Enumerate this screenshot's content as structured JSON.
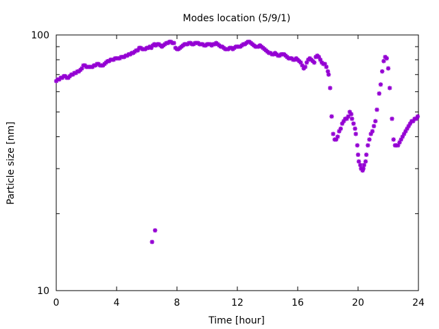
{
  "chart_data": {
    "type": "scatter",
    "title": "Modes location (5/9/1)",
    "xlabel": "Time [hour]",
    "ylabel": "Particle size [nm]",
    "xlim": [
      0,
      24
    ],
    "ylim": [
      10,
      100
    ],
    "yscale": "log",
    "xticks": [
      0,
      4,
      8,
      12,
      16,
      20,
      24
    ],
    "xtick_labels": [
      "0",
      "4",
      "8",
      "12",
      "16",
      "20",
      "24"
    ],
    "yticks": [
      10,
      100
    ],
    "ytick_labels": [
      "10",
      "100"
    ],
    "ytick_minor": [
      20,
      30,
      40,
      50,
      60,
      70,
      80,
      90
    ],
    "grid": false,
    "marker_color": "#9400D3",
    "marker": "star",
    "series": [
      {
        "points": [
          [
            0.0,
            66
          ],
          [
            0.1,
            67
          ],
          [
            0.2,
            67
          ],
          [
            0.3,
            68
          ],
          [
            0.4,
            68
          ],
          [
            0.5,
            69
          ],
          [
            0.6,
            69
          ],
          [
            0.7,
            68
          ],
          [
            0.8,
            68
          ],
          [
            0.9,
            69
          ],
          [
            1.0,
            70
          ],
          [
            1.1,
            70
          ],
          [
            1.2,
            71
          ],
          [
            1.3,
            71
          ],
          [
            1.4,
            72
          ],
          [
            1.5,
            72
          ],
          [
            1.6,
            73
          ],
          [
            1.7,
            74
          ],
          [
            1.8,
            76
          ],
          [
            1.9,
            76
          ],
          [
            2.0,
            75
          ],
          [
            2.1,
            75
          ],
          [
            2.2,
            75
          ],
          [
            2.3,
            75
          ],
          [
            2.4,
            75
          ],
          [
            2.5,
            76
          ],
          [
            2.6,
            76
          ],
          [
            2.7,
            77
          ],
          [
            2.8,
            77
          ],
          [
            2.9,
            76
          ],
          [
            3.0,
            76
          ],
          [
            3.1,
            76
          ],
          [
            3.2,
            77
          ],
          [
            3.3,
            78
          ],
          [
            3.4,
            79
          ],
          [
            3.5,
            79
          ],
          [
            3.6,
            80
          ],
          [
            3.7,
            80
          ],
          [
            3.8,
            80
          ],
          [
            3.9,
            81
          ],
          [
            4.0,
            81
          ],
          [
            4.1,
            81
          ],
          [
            4.2,
            81
          ],
          [
            4.3,
            82
          ],
          [
            4.4,
            82
          ],
          [
            4.5,
            82
          ],
          [
            4.6,
            83
          ],
          [
            4.7,
            83
          ],
          [
            4.8,
            84
          ],
          [
            4.9,
            84
          ],
          [
            5.0,
            85
          ],
          [
            5.1,
            85
          ],
          [
            5.2,
            86
          ],
          [
            5.3,
            87
          ],
          [
            5.4,
            87
          ],
          [
            5.5,
            89
          ],
          [
            5.6,
            89
          ],
          [
            5.7,
            88
          ],
          [
            5.8,
            88
          ],
          [
            5.9,
            88
          ],
          [
            6.0,
            89
          ],
          [
            6.1,
            89
          ],
          [
            6.2,
            90
          ],
          [
            6.3,
            89
          ],
          [
            6.4,
            91
          ],
          [
            6.5,
            92
          ],
          [
            6.6,
            91
          ],
          [
            6.7,
            92
          ],
          [
            6.8,
            92
          ],
          [
            6.9,
            91
          ],
          [
            7.0,
            90
          ],
          [
            7.1,
            91
          ],
          [
            7.2,
            92
          ],
          [
            7.3,
            93
          ],
          [
            7.4,
            93
          ],
          [
            7.5,
            94
          ],
          [
            7.6,
            94
          ],
          [
            7.7,
            93
          ],
          [
            7.8,
            93
          ],
          [
            7.9,
            89
          ],
          [
            8.0,
            88
          ],
          [
            8.1,
            88
          ],
          [
            8.2,
            89
          ],
          [
            8.3,
            90
          ],
          [
            8.4,
            91
          ],
          [
            8.5,
            92
          ],
          [
            8.6,
            92
          ],
          [
            8.7,
            92
          ],
          [
            8.8,
            93
          ],
          [
            8.9,
            93
          ],
          [
            9.0,
            92
          ],
          [
            9.1,
            92
          ],
          [
            9.2,
            93
          ],
          [
            9.3,
            93
          ],
          [
            9.4,
            93
          ],
          [
            9.5,
            92
          ],
          [
            9.6,
            92
          ],
          [
            9.7,
            92
          ],
          [
            9.8,
            91
          ],
          [
            9.9,
            91
          ],
          [
            10.0,
            92
          ],
          [
            10.1,
            92
          ],
          [
            10.2,
            92
          ],
          [
            10.3,
            91
          ],
          [
            10.4,
            92
          ],
          [
            10.5,
            92
          ],
          [
            10.6,
            93
          ],
          [
            10.7,
            92
          ],
          [
            10.8,
            91
          ],
          [
            10.9,
            90
          ],
          [
            11.0,
            90
          ],
          [
            11.1,
            89
          ],
          [
            11.2,
            88
          ],
          [
            11.3,
            88
          ],
          [
            11.4,
            88
          ],
          [
            11.5,
            89
          ],
          [
            11.6,
            89
          ],
          [
            11.7,
            88
          ],
          [
            11.8,
            89
          ],
          [
            11.9,
            90
          ],
          [
            12.0,
            90
          ],
          [
            12.1,
            90
          ],
          [
            12.2,
            90
          ],
          [
            12.3,
            91
          ],
          [
            12.4,
            92
          ],
          [
            12.5,
            92
          ],
          [
            12.6,
            93
          ],
          [
            12.7,
            94
          ],
          [
            12.8,
            94
          ],
          [
            12.9,
            93
          ],
          [
            13.0,
            92
          ],
          [
            13.1,
            91
          ],
          [
            13.2,
            90
          ],
          [
            13.3,
            90
          ],
          [
            13.4,
            90
          ],
          [
            13.5,
            91
          ],
          [
            13.6,
            90
          ],
          [
            13.7,
            89
          ],
          [
            13.8,
            88
          ],
          [
            13.9,
            87
          ],
          [
            14.0,
            86
          ],
          [
            14.1,
            85
          ],
          [
            14.2,
            85
          ],
          [
            14.3,
            84
          ],
          [
            14.4,
            84
          ],
          [
            14.5,
            85
          ],
          [
            14.6,
            84
          ],
          [
            14.7,
            83
          ],
          [
            14.8,
            83
          ],
          [
            14.9,
            84
          ],
          [
            15.0,
            84
          ],
          [
            15.1,
            84
          ],
          [
            15.2,
            83
          ],
          [
            15.3,
            82
          ],
          [
            15.4,
            81
          ],
          [
            15.5,
            81
          ],
          [
            15.6,
            81
          ],
          [
            15.7,
            80
          ],
          [
            15.8,
            80
          ],
          [
            15.9,
            81
          ],
          [
            16.0,
            80
          ],
          [
            16.1,
            79
          ],
          [
            16.2,
            78
          ],
          [
            16.3,
            76
          ],
          [
            16.4,
            74
          ],
          [
            16.5,
            75
          ],
          [
            16.6,
            78
          ],
          [
            16.7,
            80
          ],
          [
            16.8,
            81
          ],
          [
            16.9,
            80
          ],
          [
            17.0,
            79
          ],
          [
            17.1,
            78
          ],
          [
            17.2,
            82
          ],
          [
            17.3,
            83
          ],
          [
            17.4,
            82
          ],
          [
            17.5,
            80
          ],
          [
            17.6,
            78
          ],
          [
            17.7,
            77
          ],
          [
            17.8,
            77
          ],
          [
            17.9,
            75
          ],
          [
            18.0,
            72
          ],
          [
            18.05,
            70
          ],
          [
            18.15,
            62
          ],
          [
            18.25,
            48
          ],
          [
            18.35,
            41
          ],
          [
            18.45,
            39
          ],
          [
            18.55,
            39
          ],
          [
            18.65,
            40
          ],
          [
            18.75,
            42
          ],
          [
            18.85,
            43
          ],
          [
            18.95,
            45
          ],
          [
            19.05,
            46
          ],
          [
            19.15,
            47
          ],
          [
            19.25,
            47
          ],
          [
            19.35,
            48
          ],
          [
            19.45,
            50
          ],
          [
            19.55,
            49
          ],
          [
            19.6,
            47
          ],
          [
            19.7,
            45
          ],
          [
            19.8,
            43
          ],
          [
            19.85,
            41
          ],
          [
            19.95,
            37
          ],
          [
            20.0,
            34
          ],
          [
            20.05,
            32
          ],
          [
            20.15,
            31
          ],
          [
            20.2,
            30
          ],
          [
            20.3,
            29.5
          ],
          [
            20.35,
            30
          ],
          [
            20.4,
            31
          ],
          [
            20.5,
            32
          ],
          [
            20.55,
            34
          ],
          [
            20.65,
            37
          ],
          [
            20.75,
            39
          ],
          [
            20.85,
            41
          ],
          [
            20.95,
            42
          ],
          [
            21.05,
            44
          ],
          [
            21.15,
            46
          ],
          [
            21.25,
            51
          ],
          [
            21.4,
            59
          ],
          [
            21.5,
            64
          ],
          [
            21.6,
            72
          ],
          [
            21.7,
            79
          ],
          [
            21.8,
            82
          ],
          [
            21.9,
            81
          ],
          [
            22.0,
            74
          ],
          [
            22.1,
            62
          ],
          [
            22.25,
            47
          ],
          [
            22.35,
            39
          ],
          [
            22.45,
            37
          ],
          [
            22.55,
            37
          ],
          [
            22.65,
            37
          ],
          [
            22.75,
            38
          ],
          [
            22.85,
            39
          ],
          [
            22.95,
            40
          ],
          [
            23.05,
            41
          ],
          [
            23.15,
            42
          ],
          [
            23.25,
            43
          ],
          [
            23.35,
            44
          ],
          [
            23.45,
            45
          ],
          [
            23.55,
            46
          ],
          [
            23.65,
            46
          ],
          [
            23.75,
            47
          ],
          [
            23.85,
            47
          ],
          [
            23.95,
            48
          ],
          [
            6.35,
            15.5
          ],
          [
            6.55,
            17.2
          ]
        ]
      }
    ]
  }
}
